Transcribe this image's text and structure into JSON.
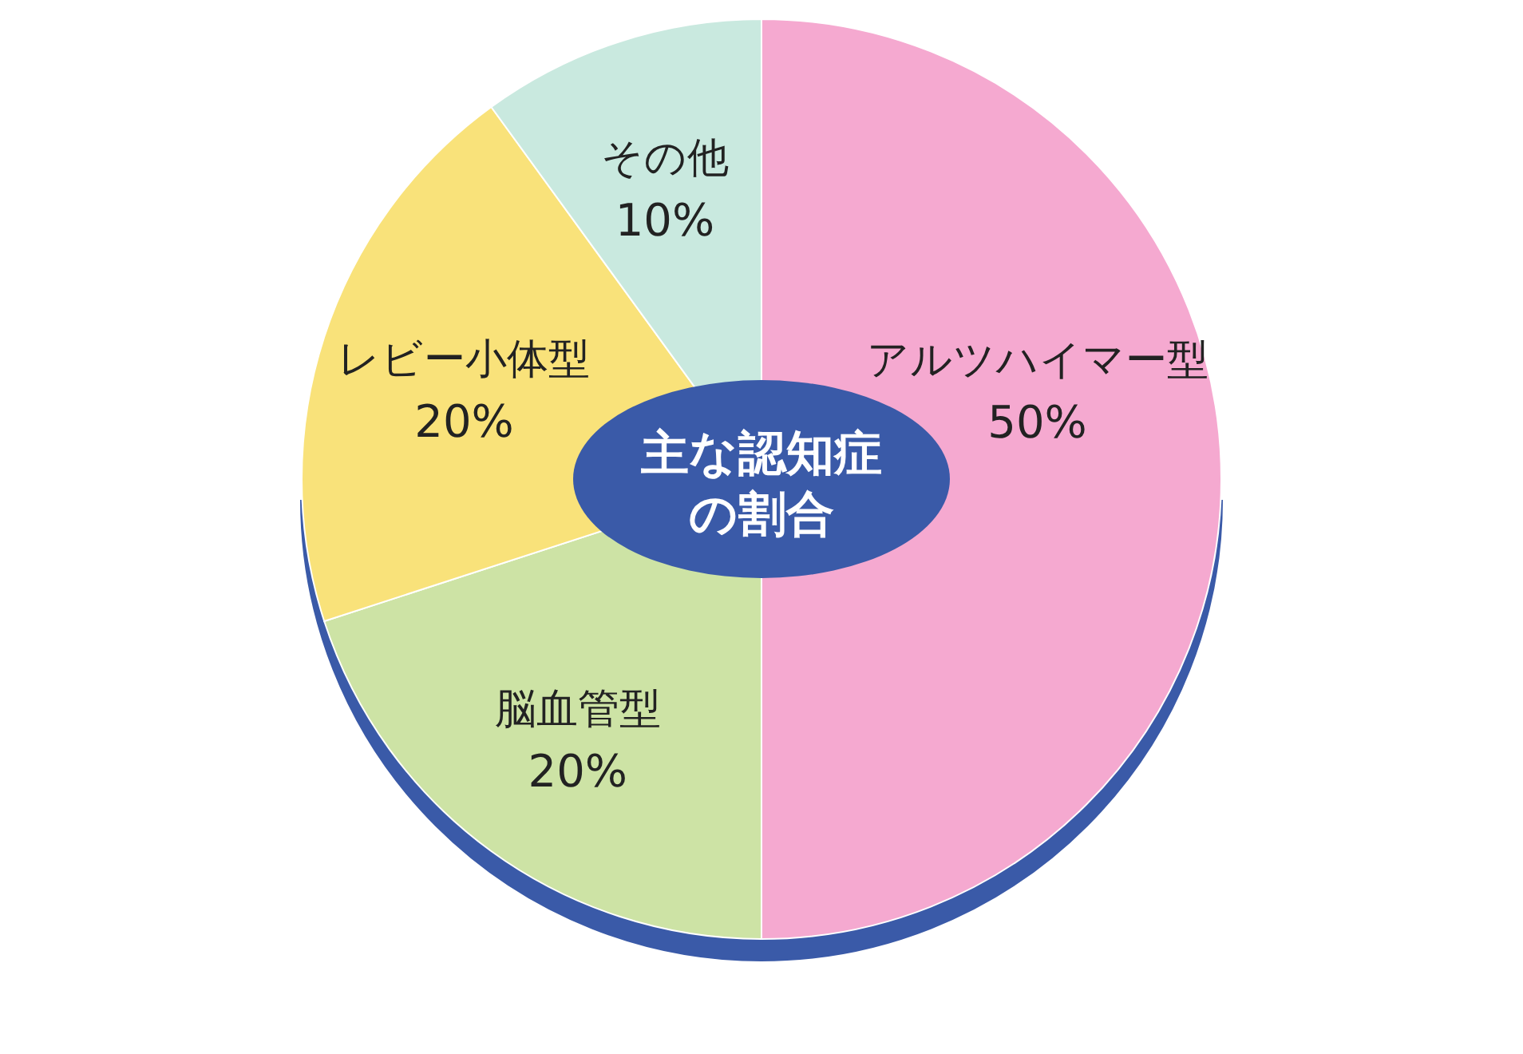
{
  "chart_data": {
    "type": "pie",
    "title": "主な認知症の割合",
    "categories": [
      "アルツハイマー型",
      "脳血管型",
      "レビー小体型",
      "その他"
    ],
    "values": [
      50,
      20,
      20,
      10
    ],
    "value_labels": [
      "50%",
      "20%",
      "20%",
      "10%"
    ],
    "colors": [
      "#f5a9d0",
      "#cde3a5",
      "#f9e27a",
      "#c9e9df"
    ],
    "legend": false
  }
}
